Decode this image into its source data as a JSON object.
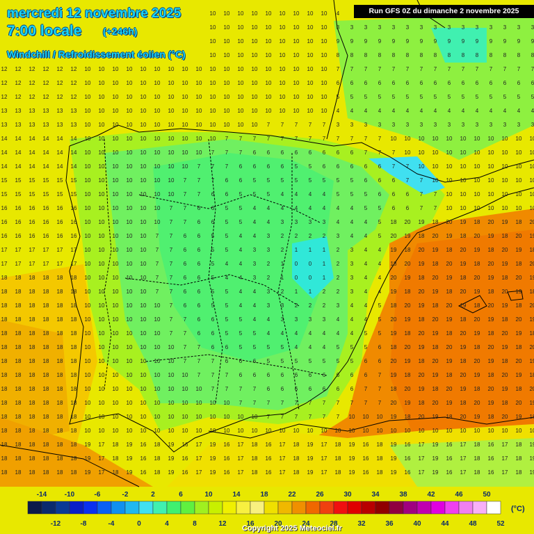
{
  "header": {
    "date": "mercredi 12 novembre 2025",
    "time": "7:00 locale",
    "lead": "(+246h)",
    "parameter": "Windchill / Refroidissement éolien (°C)"
  },
  "run_info": "Run GFS 0Z du dimanche 2 novembre 2025",
  "copyright": "Copyright 2025 Meteociel.fr",
  "legend": {
    "unit": "(°C)",
    "labels_top": [
      "-14",
      "-10",
      "-6",
      "-2",
      "2",
      "6",
      "10",
      "14",
      "18",
      "22",
      "26",
      "30",
      "34",
      "38",
      "42",
      "46",
      "50"
    ],
    "labels_bottom": [
      "-12",
      "-8",
      "-4",
      "0",
      "4",
      "8",
      "12",
      "16",
      "20",
      "24",
      "28",
      "32",
      "36",
      "40",
      "44",
      "48",
      "52"
    ],
    "colors": [
      "#0b1a4a",
      "#0b2a6e",
      "#0a3a96",
      "#0a1ec8",
      "#0a30f0",
      "#0a60f5",
      "#1090f0",
      "#20b8f0",
      "#40e0f0",
      "#40f0b0",
      "#40f070",
      "#60f040",
      "#a0f020",
      "#c8f000",
      "#f0f000",
      "#f8f040",
      "#f8f080",
      "#f0e000",
      "#f0b800",
      "#f09000",
      "#f06800",
      "#f04010",
      "#f01010",
      "#e00000",
      "#b80000",
      "#900000",
      "#900040",
      "#a00080",
      "#c000b0",
      "#e000e0",
      "#f040f0",
      "#f080f0",
      "#f8b0f8",
      "#ffffff"
    ]
  },
  "map": {
    "zones": [
      {
        "name": "iberia-interior",
        "color": "#70f060",
        "min": 3,
        "max": 9
      },
      {
        "name": "atlantic",
        "color": "#f0f000",
        "min": 10,
        "max": 17
      },
      {
        "name": "mediterranean",
        "color": "#f08a00",
        "min": 17,
        "max": 20
      },
      {
        "name": "central-cold-spot",
        "color": "#30e8d8",
        "min": 0,
        "max": 4
      }
    ]
  }
}
